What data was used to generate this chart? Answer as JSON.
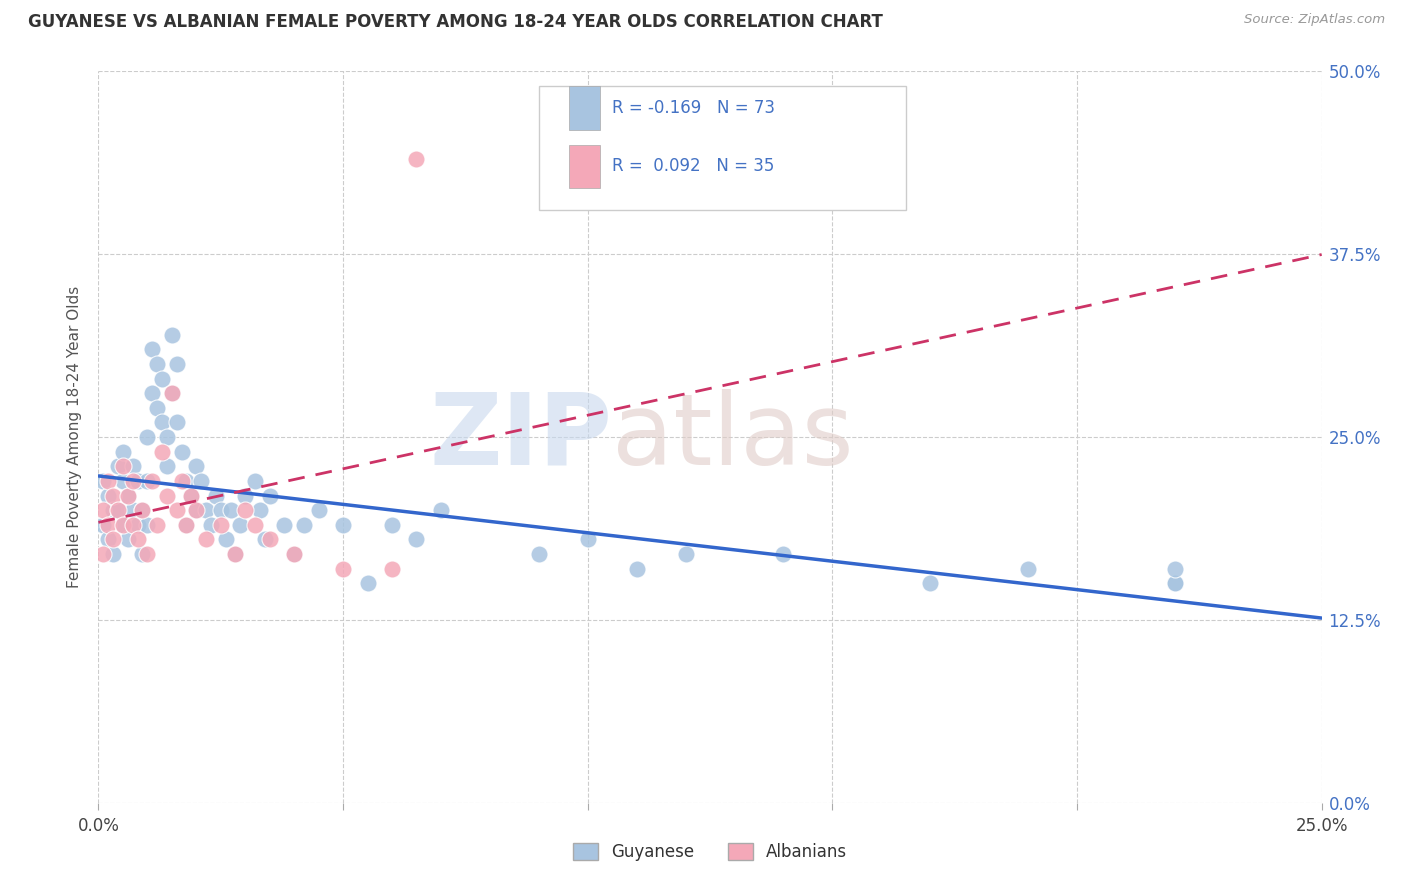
{
  "title": "GUYANESE VS ALBANIAN FEMALE POVERTY AMONG 18-24 YEAR OLDS CORRELATION CHART",
  "source": "Source: ZipAtlas.com",
  "ylabel_label": "Female Poverty Among 18-24 Year Olds",
  "guyanese_color": "#a8c4e0",
  "albanian_color": "#f4a8b8",
  "guyanese_line_color": "#3366cc",
  "albanian_line_color": "#cc3366",
  "guyanese_R": -0.169,
  "albanian_R": 0.092,
  "guyanese_N": 73,
  "albanian_N": 35,
  "xlim": [
    0.0,
    0.25
  ],
  "ylim": [
    0.0,
    0.5
  ],
  "xtick_vals": [
    0.0,
    0.25
  ],
  "xtick_labels": [
    "0.0%",
    "25.0%"
  ],
  "ytick_vals": [
    0.0,
    0.125,
    0.25,
    0.375,
    0.5
  ],
  "ytick_labels": [
    "0.0%",
    "12.5%",
    "25.0%",
    "37.5%",
    "50.0%"
  ],
  "guyanese_x": [
    0.001,
    0.001,
    0.002,
    0.002,
    0.003,
    0.003,
    0.004,
    0.004,
    0.005,
    0.005,
    0.005,
    0.006,
    0.006,
    0.007,
    0.007,
    0.008,
    0.008,
    0.009,
    0.009,
    0.01,
    0.01,
    0.01,
    0.011,
    0.011,
    0.012,
    0.012,
    0.013,
    0.013,
    0.014,
    0.014,
    0.015,
    0.015,
    0.016,
    0.016,
    0.017,
    0.018,
    0.018,
    0.019,
    0.02,
    0.02,
    0.021,
    0.022,
    0.023,
    0.024,
    0.025,
    0.026,
    0.027,
    0.028,
    0.029,
    0.03,
    0.032,
    0.033,
    0.034,
    0.035,
    0.038,
    0.04,
    0.042,
    0.045,
    0.05,
    0.055,
    0.06,
    0.065,
    0.07,
    0.09,
    0.1,
    0.11,
    0.12,
    0.14,
    0.17,
    0.19,
    0.22,
    0.22,
    0.22
  ],
  "guyanese_y": [
    0.22,
    0.19,
    0.21,
    0.18,
    0.2,
    0.17,
    0.23,
    0.2,
    0.24,
    0.22,
    0.19,
    0.21,
    0.18,
    0.2,
    0.23,
    0.19,
    0.22,
    0.2,
    0.17,
    0.25,
    0.22,
    0.19,
    0.28,
    0.31,
    0.27,
    0.3,
    0.29,
    0.26,
    0.25,
    0.23,
    0.32,
    0.28,
    0.3,
    0.26,
    0.24,
    0.22,
    0.19,
    0.21,
    0.23,
    0.2,
    0.22,
    0.2,
    0.19,
    0.21,
    0.2,
    0.18,
    0.2,
    0.17,
    0.19,
    0.21,
    0.22,
    0.2,
    0.18,
    0.21,
    0.19,
    0.17,
    0.19,
    0.2,
    0.19,
    0.15,
    0.19,
    0.18,
    0.2,
    0.17,
    0.18,
    0.16,
    0.17,
    0.17,
    0.15,
    0.16,
    0.15,
    0.15,
    0.16
  ],
  "albanian_x": [
    0.001,
    0.001,
    0.002,
    0.002,
    0.003,
    0.003,
    0.004,
    0.005,
    0.005,
    0.006,
    0.007,
    0.007,
    0.008,
    0.009,
    0.01,
    0.011,
    0.012,
    0.013,
    0.014,
    0.015,
    0.016,
    0.017,
    0.018,
    0.019,
    0.02,
    0.022,
    0.025,
    0.028,
    0.03,
    0.032,
    0.035,
    0.04,
    0.05,
    0.06,
    0.065
  ],
  "albanian_y": [
    0.2,
    0.17,
    0.22,
    0.19,
    0.21,
    0.18,
    0.2,
    0.23,
    0.19,
    0.21,
    0.22,
    0.19,
    0.18,
    0.2,
    0.17,
    0.22,
    0.19,
    0.24,
    0.21,
    0.28,
    0.2,
    0.22,
    0.19,
    0.21,
    0.2,
    0.18,
    0.19,
    0.17,
    0.2,
    0.19,
    0.18,
    0.17,
    0.16,
    0.16,
    0.44
  ]
}
